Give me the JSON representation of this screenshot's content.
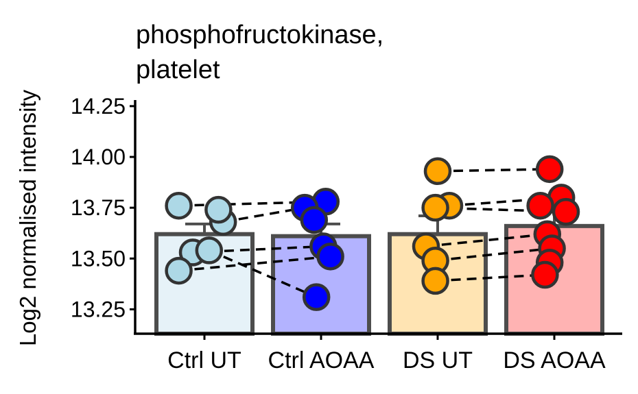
{
  "chart_data": {
    "type": "bar",
    "title_lines": [
      "phosphofructokinase,",
      "platelet"
    ],
    "xlabel": "",
    "ylabel": "Log2 normalised intensity",
    "ylim": [
      13.13,
      14.28
    ],
    "yticks": [
      13.25,
      13.5,
      13.75,
      14.0,
      14.25
    ],
    "ytick_labels": [
      "13.25",
      "13.50",
      "13.75",
      "14.00",
      "14.25"
    ],
    "categories": [
      "Ctrl UT",
      "Ctrl AOAA",
      "DS UT",
      "DS AOAA"
    ],
    "values": [
      13.62,
      13.61,
      13.62,
      13.66
    ],
    "errors": [
      0.05,
      0.06,
      0.09,
      0.07
    ],
    "grid": false,
    "legend": "none",
    "colors": {
      "bar_fills": [
        "#e6f2f8",
        "#b3b3ff",
        "#ffe4b3",
        "#ffb3b3"
      ],
      "point_fills": [
        "#add8e6",
        "#0000ff",
        "#ffa500",
        "#ff0000"
      ],
      "bar_outline": "#4d4d4d",
      "point_outline": "#333333",
      "pair_lines": "#000000"
    },
    "points": [
      [
        {
          "x": 13.76,
          "jitter": -0.22
        },
        {
          "x": 13.68,
          "jitter": 0.16
        },
        {
          "x": 13.74,
          "jitter": 0.12
        },
        {
          "x": 13.53,
          "jitter": -0.1
        },
        {
          "x": 13.54,
          "jitter": 0.04
        },
        {
          "x": 13.44,
          "jitter": -0.22
        }
      ],
      [
        {
          "x": 13.78,
          "jitter": 0.04
        },
        {
          "x": 13.75,
          "jitter": -0.14
        },
        {
          "x": 13.69,
          "jitter": -0.06
        },
        {
          "x": 13.56,
          "jitter": 0.02
        },
        {
          "x": 13.51,
          "jitter": 0.08
        },
        {
          "x": 13.31,
          "jitter": -0.04
        }
      ],
      [
        {
          "x": 13.93,
          "jitter": 0.0
        },
        {
          "x": 13.76,
          "jitter": 0.1
        },
        {
          "x": 13.75,
          "jitter": -0.02
        },
        {
          "x": 13.56,
          "jitter": -0.1
        },
        {
          "x": 13.49,
          "jitter": -0.02
        },
        {
          "x": 13.39,
          "jitter": -0.02
        }
      ],
      [
        {
          "x": 13.94,
          "jitter": -0.04
        },
        {
          "x": 13.8,
          "jitter": 0.06
        },
        {
          "x": 13.76,
          "jitter": -0.12
        },
        {
          "x": 13.73,
          "jitter": 0.1
        },
        {
          "x": 13.62,
          "jitter": -0.06
        },
        {
          "x": 13.55,
          "jitter": -0.02
        },
        {
          "x": 13.48,
          "jitter": -0.04
        },
        {
          "x": 13.42,
          "jitter": -0.08
        }
      ]
    ],
    "pairs": [
      [
        [
          0,
          0
        ],
        [
          1,
          0
        ]
      ],
      [
        [
          0,
          1
        ],
        [
          1,
          1
        ]
      ],
      [
        [
          0,
          3
        ],
        [
          1,
          3
        ]
      ],
      [
        [
          0,
          4
        ],
        [
          1,
          5
        ]
      ],
      [
        [
          0,
          5
        ],
        [
          1,
          4
        ]
      ],
      [
        [
          2,
          0
        ],
        [
          3,
          0
        ]
      ],
      [
        [
          2,
          1
        ],
        [
          3,
          1
        ]
      ],
      [
        [
          2,
          2
        ],
        [
          3,
          3
        ]
      ],
      [
        [
          2,
          3
        ],
        [
          3,
          4
        ]
      ],
      [
        [
          2,
          4
        ],
        [
          3,
          5
        ]
      ],
      [
        [
          2,
          5
        ],
        [
          3,
          7
        ]
      ]
    ]
  }
}
